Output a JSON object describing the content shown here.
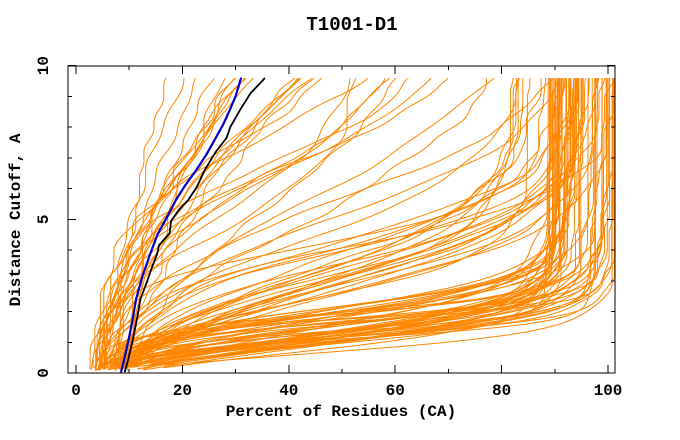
{
  "window": {
    "background": "#FFFFFF"
  },
  "chart_data": {
    "type": "line",
    "title": "T1001-D1",
    "xlabel": "Percent of Residues (CA)",
    "ylabel": "Distance Cutoff, A",
    "xlim": [
      0,
      101.3
    ],
    "ylim": [
      0,
      10
    ],
    "xticks_major": [
      0,
      20,
      40,
      60,
      80,
      100
    ],
    "xticks_minor": [
      10,
      30,
      50,
      70,
      90
    ],
    "yticks_major": [
      0,
      5,
      10
    ],
    "yticks_minor": [
      1,
      2,
      3,
      4,
      6,
      7,
      8,
      9
    ],
    "grid": false,
    "legend": null,
    "axis_color": "#000000",
    "curve_y_start": 0.08,
    "curve_y_end": 9.58,
    "series": [
      {
        "name": "model-ensemble",
        "color": "#FF8600",
        "stroke_width": 1,
        "style": "generated-ensemble",
        "seed": 1337,
        "groups": [
          {
            "label": "fast-accurate-models",
            "model": "logistic",
            "count": 55,
            "x0": [
              2.5,
              10.5
            ],
            "cap": [
              88,
              101.3
            ],
            "mid": [
              0.55,
              2.2
            ],
            "spread": [
              0.25,
              0.75
            ]
          },
          {
            "label": "medium-models",
            "model": "logistic",
            "count": 25,
            "x0": [
              2.5,
              10.5
            ],
            "cap": [
              80,
              101.3
            ],
            "mid": [
              2.3,
              4.5
            ],
            "spread": [
              0.7,
              1.4
            ]
          },
          {
            "label": "slow-models",
            "model": "logistic",
            "count": 14,
            "x0": [
              2.5,
              10.5
            ],
            "cap": [
              52,
              101.0
            ],
            "mid": [
              4.5,
              7.8
            ],
            "spread": [
              1.2,
              2.3
            ]
          },
          {
            "label": "poor-models",
            "model": "power",
            "count": 17,
            "x0": [
              3.0,
              10.5
            ],
            "x_end": [
              15.5,
              45
            ],
            "x_end_bias": 1.6,
            "exponent": [
              1.15,
              1.9
            ]
          }
        ]
      },
      {
        "name": "highlight-model-black",
        "color": "#000000",
        "stroke_width": 1.8,
        "points": [
          [
            9.2,
            0.05
          ],
          [
            9.9,
            0.5
          ],
          [
            10.7,
            1.1
          ],
          [
            11.5,
            1.8
          ],
          [
            12.1,
            2.4
          ],
          [
            13.4,
            3.0
          ],
          [
            14.2,
            3.4
          ],
          [
            15.2,
            3.85
          ],
          [
            15.6,
            4.15
          ],
          [
            17.6,
            4.55
          ],
          [
            17.9,
            4.95
          ],
          [
            19.3,
            5.3
          ],
          [
            21.1,
            5.63
          ],
          [
            22.7,
            6.05
          ],
          [
            24.2,
            6.6
          ],
          [
            26.3,
            7.2
          ],
          [
            28.3,
            7.65
          ],
          [
            29.0,
            8.0
          ],
          [
            30.8,
            8.55
          ],
          [
            32.8,
            9.1
          ],
          [
            35.0,
            9.5
          ],
          [
            35.4,
            9.58
          ]
        ]
      },
      {
        "name": "highlight-model-blue",
        "color": "#0000CC",
        "stroke_width": 2.2,
        "points": [
          [
            8.5,
            0.05
          ],
          [
            9.0,
            0.4
          ],
          [
            9.8,
            1.0
          ],
          [
            10.6,
            1.7
          ],
          [
            11.3,
            2.4
          ],
          [
            12.4,
            3.1
          ],
          [
            13.9,
            3.85
          ],
          [
            15.3,
            4.5
          ],
          [
            17.2,
            5.1
          ],
          [
            18.8,
            5.63
          ],
          [
            20.5,
            6.1
          ],
          [
            22.6,
            6.6
          ],
          [
            24.5,
            7.1
          ],
          [
            26.1,
            7.6
          ],
          [
            27.7,
            8.1
          ],
          [
            28.9,
            8.55
          ],
          [
            30.0,
            9.0
          ],
          [
            30.7,
            9.4
          ],
          [
            31.0,
            9.58
          ]
        ]
      }
    ]
  }
}
